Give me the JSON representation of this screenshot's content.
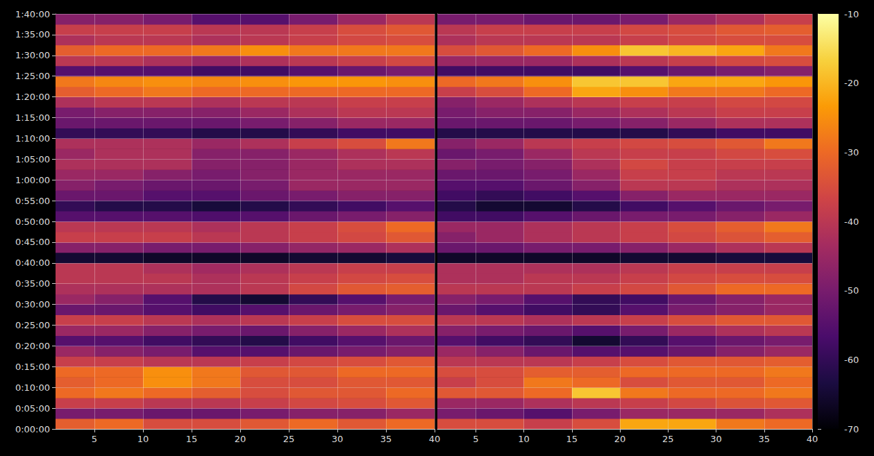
{
  "chart_data": {
    "type": "heatmap",
    "grid": true,
    "xlim": [
      1,
      40
    ],
    "xticks": [
      5,
      10,
      15,
      20,
      25,
      30,
      35,
      40
    ],
    "ylim": [
      0,
      6000
    ],
    "yticks": [
      {
        "value": 0,
        "label": "0:00:00"
      },
      {
        "value": 300,
        "label": "0:05:00"
      },
      {
        "value": 600,
        "label": "0:10:00"
      },
      {
        "value": 900,
        "label": "0:15:00"
      },
      {
        "value": 1200,
        "label": "0:20:00"
      },
      {
        "value": 1500,
        "label": "0:25:00"
      },
      {
        "value": 1800,
        "label": "0:30:00"
      },
      {
        "value": 2100,
        "label": "0:35:00"
      },
      {
        "value": 2400,
        "label": "0:40:00"
      },
      {
        "value": 2700,
        "label": "0:45:00"
      },
      {
        "value": 3000,
        "label": "0:50:00"
      },
      {
        "value": 3300,
        "label": "0:55:00"
      },
      {
        "value": 3600,
        "label": "1:00:00"
      },
      {
        "value": 3900,
        "label": "1:05:00"
      },
      {
        "value": 4200,
        "label": "1:10:00"
      },
      {
        "value": 4500,
        "label": "1:15:00"
      },
      {
        "value": 4800,
        "label": "1:20:00"
      },
      {
        "value": 5100,
        "label": "1:25:00"
      },
      {
        "value": 5400,
        "label": "1:30:00"
      },
      {
        "value": 5700,
        "label": "1:35:00"
      },
      {
        "value": 6000,
        "label": "1:40:00"
      }
    ],
    "x_edges": [
      1,
      5,
      10,
      15,
      20,
      25,
      30,
      35,
      40
    ],
    "y_edges": [
      0,
      150,
      300,
      450,
      600,
      750,
      900,
      1050,
      1200,
      1350,
      1500,
      1650,
      1800,
      1950,
      2100,
      2250,
      2400,
      2550,
      2700,
      2850,
      3000,
      3150,
      3300,
      3450,
      3600,
      3750,
      3900,
      4050,
      4200,
      4350,
      4500,
      4650,
      4800,
      4950,
      5100,
      5250,
      5400,
      5550,
      5700,
      5850,
      6000
    ],
    "colorbar": {
      "range": [
        -70,
        -10
      ],
      "ticks": [
        -70,
        -60,
        -50,
        -40,
        -30,
        -20,
        -10
      ]
    },
    "panels": [
      {
        "values": [
          [
            -32,
            -30,
            -35,
            -35,
            -33,
            -30,
            -33,
            -30
          ],
          [
            -50,
            -50,
            -52,
            -52,
            -50,
            -48,
            -48,
            -45
          ],
          [
            -38,
            -38,
            -40,
            -40,
            -38,
            -36,
            -35,
            -33
          ],
          [
            -30,
            -28,
            -30,
            -32,
            -35,
            -33,
            -33,
            -30
          ],
          [
            -32,
            -30,
            -25,
            -28,
            -35,
            -35,
            -33,
            -33
          ],
          [
            -30,
            -30,
            -25,
            -28,
            -33,
            -33,
            -30,
            -30
          ],
          [
            -38,
            -38,
            -40,
            -40,
            -38,
            -36,
            -35,
            -33
          ],
          [
            -45,
            -48,
            -50,
            -55,
            -55,
            -52,
            -50,
            -48
          ],
          [
            -55,
            -55,
            -58,
            -60,
            -62,
            -58,
            -55,
            -52
          ],
          [
            -45,
            -45,
            -48,
            -50,
            -52,
            -48,
            -45,
            -42
          ],
          [
            -38,
            -38,
            -40,
            -42,
            -40,
            -38,
            -35,
            -35
          ],
          [
            -52,
            -52,
            -55,
            -58,
            -55,
            -52,
            -50,
            -48
          ],
          [
            -45,
            -48,
            -55,
            -62,
            -65,
            -60,
            -55,
            -50
          ],
          [
            -42,
            -42,
            -42,
            -42,
            -40,
            -36,
            -33,
            -32
          ],
          [
            -40,
            -40,
            -40,
            -42,
            -40,
            -38,
            -36,
            -35
          ],
          [
            -40,
            -40,
            -42,
            -44,
            -42,
            -40,
            -38,
            -38
          ],
          [
            -65,
            -65,
            -66,
            -66,
            -66,
            -65,
            -65,
            -64
          ],
          [
            -48,
            -48,
            -50,
            -50,
            -48,
            -46,
            -45,
            -42
          ],
          [
            -38,
            -38,
            -38,
            -40,
            -40,
            -38,
            -36,
            -33
          ],
          [
            -40,
            -40,
            -40,
            -42,
            -40,
            -38,
            -35,
            -30
          ],
          [
            -55,
            -55,
            -55,
            -56,
            -55,
            -52,
            -50,
            -48
          ],
          [
            -60,
            -62,
            -62,
            -64,
            -62,
            -60,
            -58,
            -55
          ],
          [
            -52,
            -52,
            -55,
            -55,
            -52,
            -50,
            -48,
            -48
          ],
          [
            -48,
            -50,
            -52,
            -52,
            -50,
            -45,
            -45,
            -45
          ],
          [
            -45,
            -45,
            -48,
            -50,
            -48,
            -45,
            -45,
            -45
          ],
          [
            -42,
            -42,
            -42,
            -48,
            -48,
            -45,
            -42,
            -42
          ],
          [
            -45,
            -42,
            -42,
            -48,
            -48,
            -45,
            -42,
            -40
          ],
          [
            -42,
            -42,
            -42,
            -45,
            -42,
            -38,
            -35,
            -28
          ],
          [
            -60,
            -60,
            -60,
            -62,
            -62,
            -60,
            -58,
            -58
          ],
          [
            -52,
            -52,
            -52,
            -52,
            -50,
            -48,
            -45,
            -45
          ],
          [
            -50,
            -48,
            -48,
            -48,
            -45,
            -42,
            -40,
            -40
          ],
          [
            -42,
            -40,
            -40,
            -42,
            -40,
            -40,
            -38,
            -38
          ],
          [
            -32,
            -30,
            -28,
            -30,
            -30,
            -30,
            -30,
            -30
          ],
          [
            -28,
            -26,
            -25,
            -26,
            -25,
            -24,
            -24,
            -25
          ],
          [
            -55,
            -55,
            -55,
            -58,
            -58,
            -55,
            -52,
            -50
          ],
          [
            -40,
            -40,
            -42,
            -45,
            -42,
            -40,
            -38,
            -36
          ],
          [
            -32,
            -30,
            -30,
            -28,
            -25,
            -28,
            -28,
            -28
          ],
          [
            -42,
            -40,
            -40,
            -42,
            -40,
            -38,
            -36,
            -35
          ],
          [
            -38,
            -38,
            -38,
            -40,
            -40,
            -38,
            -35,
            -33
          ],
          [
            -48,
            -48,
            -50,
            -55,
            -55,
            -50,
            -45,
            -40
          ]
        ]
      },
      {
        "values": [
          [
            -35,
            -35,
            -38,
            -35,
            -22,
            -22,
            -28,
            -30
          ],
          [
            -50,
            -52,
            -55,
            -50,
            -45,
            -45,
            -45,
            -42
          ],
          [
            -45,
            -45,
            -42,
            -40,
            -38,
            -36,
            -34,
            -33
          ],
          [
            -33,
            -33,
            -30,
            -18,
            -28,
            -30,
            -30,
            -28
          ],
          [
            -38,
            -35,
            -28,
            -30,
            -35,
            -33,
            -33,
            -30
          ],
          [
            -35,
            -35,
            -32,
            -32,
            -30,
            -30,
            -30,
            -28
          ],
          [
            -40,
            -40,
            -40,
            -38,
            -35,
            -33,
            -33,
            -32
          ],
          [
            -45,
            -48,
            -52,
            -55,
            -55,
            -52,
            -48,
            -45
          ],
          [
            -55,
            -58,
            -60,
            -65,
            -60,
            -55,
            -52,
            -50
          ],
          [
            -48,
            -50,
            -52,
            -55,
            -50,
            -45,
            -42,
            -40
          ],
          [
            -40,
            -40,
            -42,
            -40,
            -38,
            -35,
            -33,
            -33
          ],
          [
            -52,
            -55,
            -58,
            -60,
            -55,
            -50,
            -48,
            -45
          ],
          [
            -48,
            -50,
            -55,
            -60,
            -58,
            -52,
            -48,
            -45
          ],
          [
            -40,
            -40,
            -40,
            -38,
            -36,
            -33,
            -30,
            -30
          ],
          [
            -42,
            -42,
            -40,
            -40,
            -38,
            -36,
            -35,
            -35
          ],
          [
            -42,
            -42,
            -42,
            -42,
            -40,
            -38,
            -38,
            -38
          ],
          [
            -66,
            -66,
            -66,
            -66,
            -65,
            -65,
            -64,
            -64
          ],
          [
            -52,
            -52,
            -50,
            -50,
            -48,
            -45,
            -42,
            -40
          ],
          [
            -48,
            -45,
            -42,
            -40,
            -38,
            -36,
            -34,
            -32
          ],
          [
            -45,
            -45,
            -42,
            -40,
            -38,
            -35,
            -32,
            -28
          ],
          [
            -58,
            -58,
            -55,
            -52,
            -50,
            -50,
            -48,
            -45
          ],
          [
            -62,
            -65,
            -65,
            -62,
            -58,
            -55,
            -52,
            -50
          ],
          [
            -58,
            -60,
            -58,
            -55,
            -48,
            -45,
            -45,
            -45
          ],
          [
            -55,
            -55,
            -52,
            -48,
            -40,
            -40,
            -42,
            -42
          ],
          [
            -52,
            -52,
            -50,
            -45,
            -38,
            -38,
            -40,
            -40
          ],
          [
            -48,
            -50,
            -48,
            -42,
            -36,
            -38,
            -38,
            -38
          ],
          [
            -52,
            -50,
            -45,
            -40,
            -38,
            -38,
            -36,
            -35
          ],
          [
            -48,
            -45,
            -40,
            -38,
            -36,
            -35,
            -33,
            -28
          ],
          [
            -62,
            -62,
            -62,
            -62,
            -62,
            -60,
            -58,
            -58
          ],
          [
            -52,
            -52,
            -52,
            -50,
            -48,
            -45,
            -42,
            -42
          ],
          [
            -50,
            -48,
            -48,
            -45,
            -42,
            -40,
            -38,
            -38
          ],
          [
            -48,
            -45,
            -42,
            -40,
            -38,
            -38,
            -36,
            -36
          ],
          [
            -38,
            -35,
            -30,
            -22,
            -25,
            -28,
            -28,
            -30
          ],
          [
            -30,
            -28,
            -25,
            -18,
            -18,
            -22,
            -22,
            -24
          ],
          [
            -58,
            -58,
            -58,
            -58,
            -55,
            -52,
            -50,
            -48
          ],
          [
            -45,
            -45,
            -45,
            -42,
            -40,
            -38,
            -36,
            -35
          ],
          [
            -35,
            -33,
            -30,
            -25,
            -18,
            -20,
            -22,
            -28
          ],
          [
            -42,
            -40,
            -40,
            -40,
            -38,
            -36,
            -35,
            -35
          ],
          [
            -40,
            -38,
            -38,
            -38,
            -36,
            -35,
            -33,
            -32
          ],
          [
            -50,
            -50,
            -52,
            -52,
            -50,
            -45,
            -42,
            -38
          ]
        ]
      }
    ]
  }
}
